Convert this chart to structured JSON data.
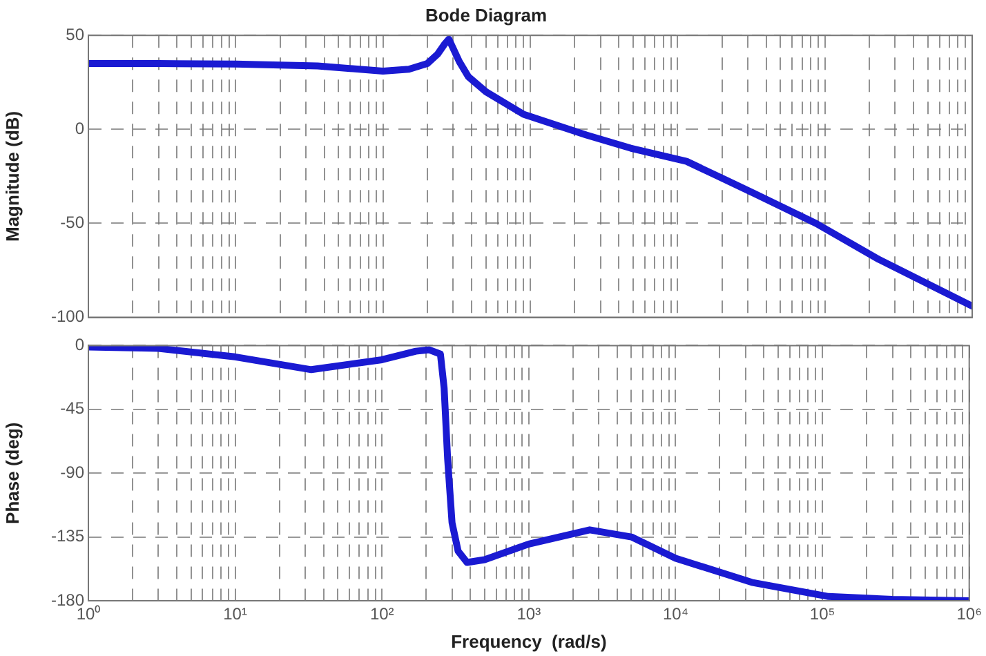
{
  "chart_data": [
    {
      "type": "line",
      "title": "Bode Diagram",
      "ylabel": "Magnitude (dB)",
      "log": "x",
      "grid": true,
      "marker": "none",
      "line_style": "solid",
      "tick_labels": "y",
      "xlim": [
        1,
        1000000
      ],
      "ylim": [
        -100,
        50
      ],
      "yticks": [
        -100,
        -50,
        0,
        50
      ],
      "xticks": [
        {
          "value": 1,
          "label": null
        },
        {
          "value": 2,
          "label": null
        },
        {
          "value": 3,
          "label": null
        },
        {
          "value": 4,
          "label": null
        },
        {
          "value": 5,
          "label": null
        },
        {
          "value": 6,
          "label": null
        },
        {
          "value": 7,
          "label": null
        },
        {
          "value": 8,
          "label": null
        },
        {
          "value": 9,
          "label": null
        },
        {
          "value": 10,
          "label": null
        },
        {
          "value": 20,
          "label": null
        },
        {
          "value": 30,
          "label": null
        },
        {
          "value": 40,
          "label": null
        },
        {
          "value": 50,
          "label": null
        },
        {
          "value": 60,
          "label": null
        },
        {
          "value": 70,
          "label": null
        },
        {
          "value": 80,
          "label": null
        },
        {
          "value": 90,
          "label": null
        },
        {
          "value": 100,
          "label": null
        },
        {
          "value": 200,
          "label": null
        },
        {
          "value": 300,
          "label": null
        },
        {
          "value": 400,
          "label": null
        },
        {
          "value": 500,
          "label": null
        },
        {
          "value": 600,
          "label": null
        },
        {
          "value": 700,
          "label": null
        },
        {
          "value": 800,
          "label": null
        },
        {
          "value": 900,
          "label": null
        },
        {
          "value": 1000,
          "label": null
        },
        {
          "value": 2000,
          "label": null
        },
        {
          "value": 3000,
          "label": null
        },
        {
          "value": 4000,
          "label": null
        },
        {
          "value": 5000,
          "label": null
        },
        {
          "value": 6000,
          "label": null
        },
        {
          "value": 7000,
          "label": null
        },
        {
          "value": 8000,
          "label": null
        },
        {
          "value": 9000,
          "label": null
        },
        {
          "value": 10000,
          "label": null
        },
        {
          "value": 20000,
          "label": null
        },
        {
          "value": 30000,
          "label": null
        },
        {
          "value": 40000,
          "label": null
        },
        {
          "value": 50000,
          "label": null
        },
        {
          "value": 60000,
          "label": null
        },
        {
          "value": 70000,
          "label": null
        },
        {
          "value": 80000,
          "label": null
        },
        {
          "value": 90000,
          "label": null
        },
        {
          "value": 100000,
          "label": null
        },
        {
          "value": 200000,
          "label": null
        },
        {
          "value": 300000,
          "label": null
        },
        {
          "value": 400000,
          "label": null
        },
        {
          "value": 500000,
          "label": null
        },
        {
          "value": 600000,
          "label": null
        },
        {
          "value": 700000,
          "label": null
        },
        {
          "value": 800000,
          "label": null
        },
        {
          "value": 900000,
          "label": null
        },
        {
          "value": 1000000,
          "label": null
        }
      ],
      "series": [
        {
          "color": "#1a1ad2",
          "x": [
            1,
            3,
            10,
            36,
            100,
            150,
            200,
            235,
            260,
            280,
            300,
            330,
            380,
            500,
            900,
            2400,
            4800,
            11500,
            33000,
            87000,
            230000,
            1000000
          ],
          "values": [
            35,
            35,
            34.7,
            33.7,
            31,
            32,
            35,
            40,
            45,
            48,
            43,
            36,
            28,
            20,
            8,
            -3,
            -10,
            -17,
            -34,
            -50,
            -69,
            -94
          ]
        }
      ]
    },
    {
      "type": "line",
      "xlabel": "Frequency  (rad/s)",
      "ylabel": "Phase (deg)",
      "log": "x",
      "grid": true,
      "marker": "none",
      "line_style": "solid",
      "xlim": [
        1,
        1000000
      ],
      "ylim": [
        -180,
        0
      ],
      "yticks": [
        -180,
        -135,
        -90,
        -45,
        0
      ],
      "xticks": [
        {
          "value": 1,
          "label": "10⁰"
        },
        {
          "value": 2,
          "label": null
        },
        {
          "value": 3,
          "label": null
        },
        {
          "value": 4,
          "label": null
        },
        {
          "value": 5,
          "label": null
        },
        {
          "value": 6,
          "label": null
        },
        {
          "value": 7,
          "label": null
        },
        {
          "value": 8,
          "label": null
        },
        {
          "value": 9,
          "label": null
        },
        {
          "value": 10,
          "label": "10¹"
        },
        {
          "value": 20,
          "label": null
        },
        {
          "value": 30,
          "label": null
        },
        {
          "value": 40,
          "label": null
        },
        {
          "value": 50,
          "label": null
        },
        {
          "value": 60,
          "label": null
        },
        {
          "value": 70,
          "label": null
        },
        {
          "value": 80,
          "label": null
        },
        {
          "value": 90,
          "label": null
        },
        {
          "value": 100,
          "label": "10²"
        },
        {
          "value": 200,
          "label": null
        },
        {
          "value": 300,
          "label": null
        },
        {
          "value": 400,
          "label": null
        },
        {
          "value": 500,
          "label": null
        },
        {
          "value": 600,
          "label": null
        },
        {
          "value": 700,
          "label": null
        },
        {
          "value": 800,
          "label": null
        },
        {
          "value": 900,
          "label": null
        },
        {
          "value": 1000,
          "label": "10³"
        },
        {
          "value": 2000,
          "label": null
        },
        {
          "value": 3000,
          "label": null
        },
        {
          "value": 4000,
          "label": null
        },
        {
          "value": 5000,
          "label": null
        },
        {
          "value": 6000,
          "label": null
        },
        {
          "value": 7000,
          "label": null
        },
        {
          "value": 8000,
          "label": null
        },
        {
          "value": 9000,
          "label": null
        },
        {
          "value": 10000,
          "label": "10⁴"
        },
        {
          "value": 20000,
          "label": null
        },
        {
          "value": 30000,
          "label": null
        },
        {
          "value": 40000,
          "label": null
        },
        {
          "value": 50000,
          "label": null
        },
        {
          "value": 60000,
          "label": null
        },
        {
          "value": 70000,
          "label": null
        },
        {
          "value": 80000,
          "label": null
        },
        {
          "value": 90000,
          "label": null
        },
        {
          "value": 100000,
          "label": "10⁵"
        },
        {
          "value": 200000,
          "label": null
        },
        {
          "value": 300000,
          "label": null
        },
        {
          "value": 400000,
          "label": null
        },
        {
          "value": 500000,
          "label": null
        },
        {
          "value": 600000,
          "label": null
        },
        {
          "value": 700000,
          "label": null
        },
        {
          "value": 800000,
          "label": null
        },
        {
          "value": 900000,
          "label": null
        },
        {
          "value": 1000000,
          "label": "10⁶"
        }
      ],
      "series": [
        {
          "color": "#1a1ad2",
          "x": [
            1,
            3,
            10,
            33,
            100,
            170,
            210,
            250,
            265,
            280,
            300,
            330,
            380,
            500,
            1000,
            2600,
            5000,
            10000,
            33000,
            110000,
            300000,
            1000000
          ],
          "values": [
            -1,
            -2,
            -8,
            -17,
            -10,
            -4,
            -3,
            -6,
            -30,
            -80,
            -125,
            -145,
            -153,
            -151,
            -140,
            -130,
            -135,
            -150,
            -167,
            -177,
            -179,
            -180
          ]
        }
      ]
    }
  ]
}
